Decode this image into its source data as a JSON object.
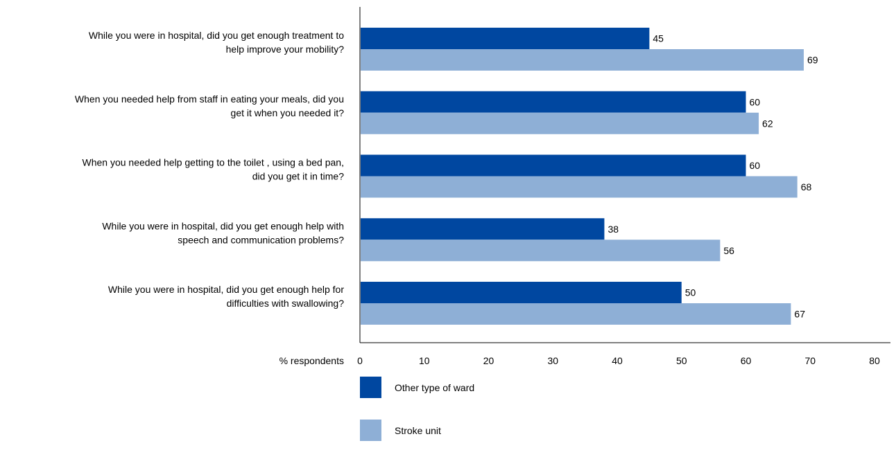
{
  "chart_data": {
    "type": "bar",
    "orientation": "horizontal",
    "categories": [
      [
        "While you were in hospital, did you get enough treatment to",
        "help improve your mobility?"
      ],
      [
        "When you needed help from staff in eating your meals, did you",
        "get it when you needed it?"
      ],
      [
        "When you needed help getting to the toilet , using a bed pan,",
        "did you get it in time?"
      ],
      [
        "While you were in hospital, did you get enough help with",
        "speech and communication problems?"
      ],
      [
        "While you were in hospital, did you get enough help for",
        "difficulties with swallowing?"
      ]
    ],
    "series": [
      {
        "name": "Other type of ward",
        "color": "#0047a0",
        "values": [
          45,
          60,
          60,
          38,
          50
        ]
      },
      {
        "name": "Stroke unit",
        "color": "#8eafd6",
        "values": [
          69,
          62,
          68,
          56,
          67
        ]
      }
    ],
    "xlabel": "% respondents",
    "xlim": [
      0,
      80
    ],
    "xticks": [
      0,
      10,
      20,
      30,
      40,
      50,
      60,
      70,
      80
    ],
    "grid": false,
    "legend_position": "bottom-left"
  }
}
